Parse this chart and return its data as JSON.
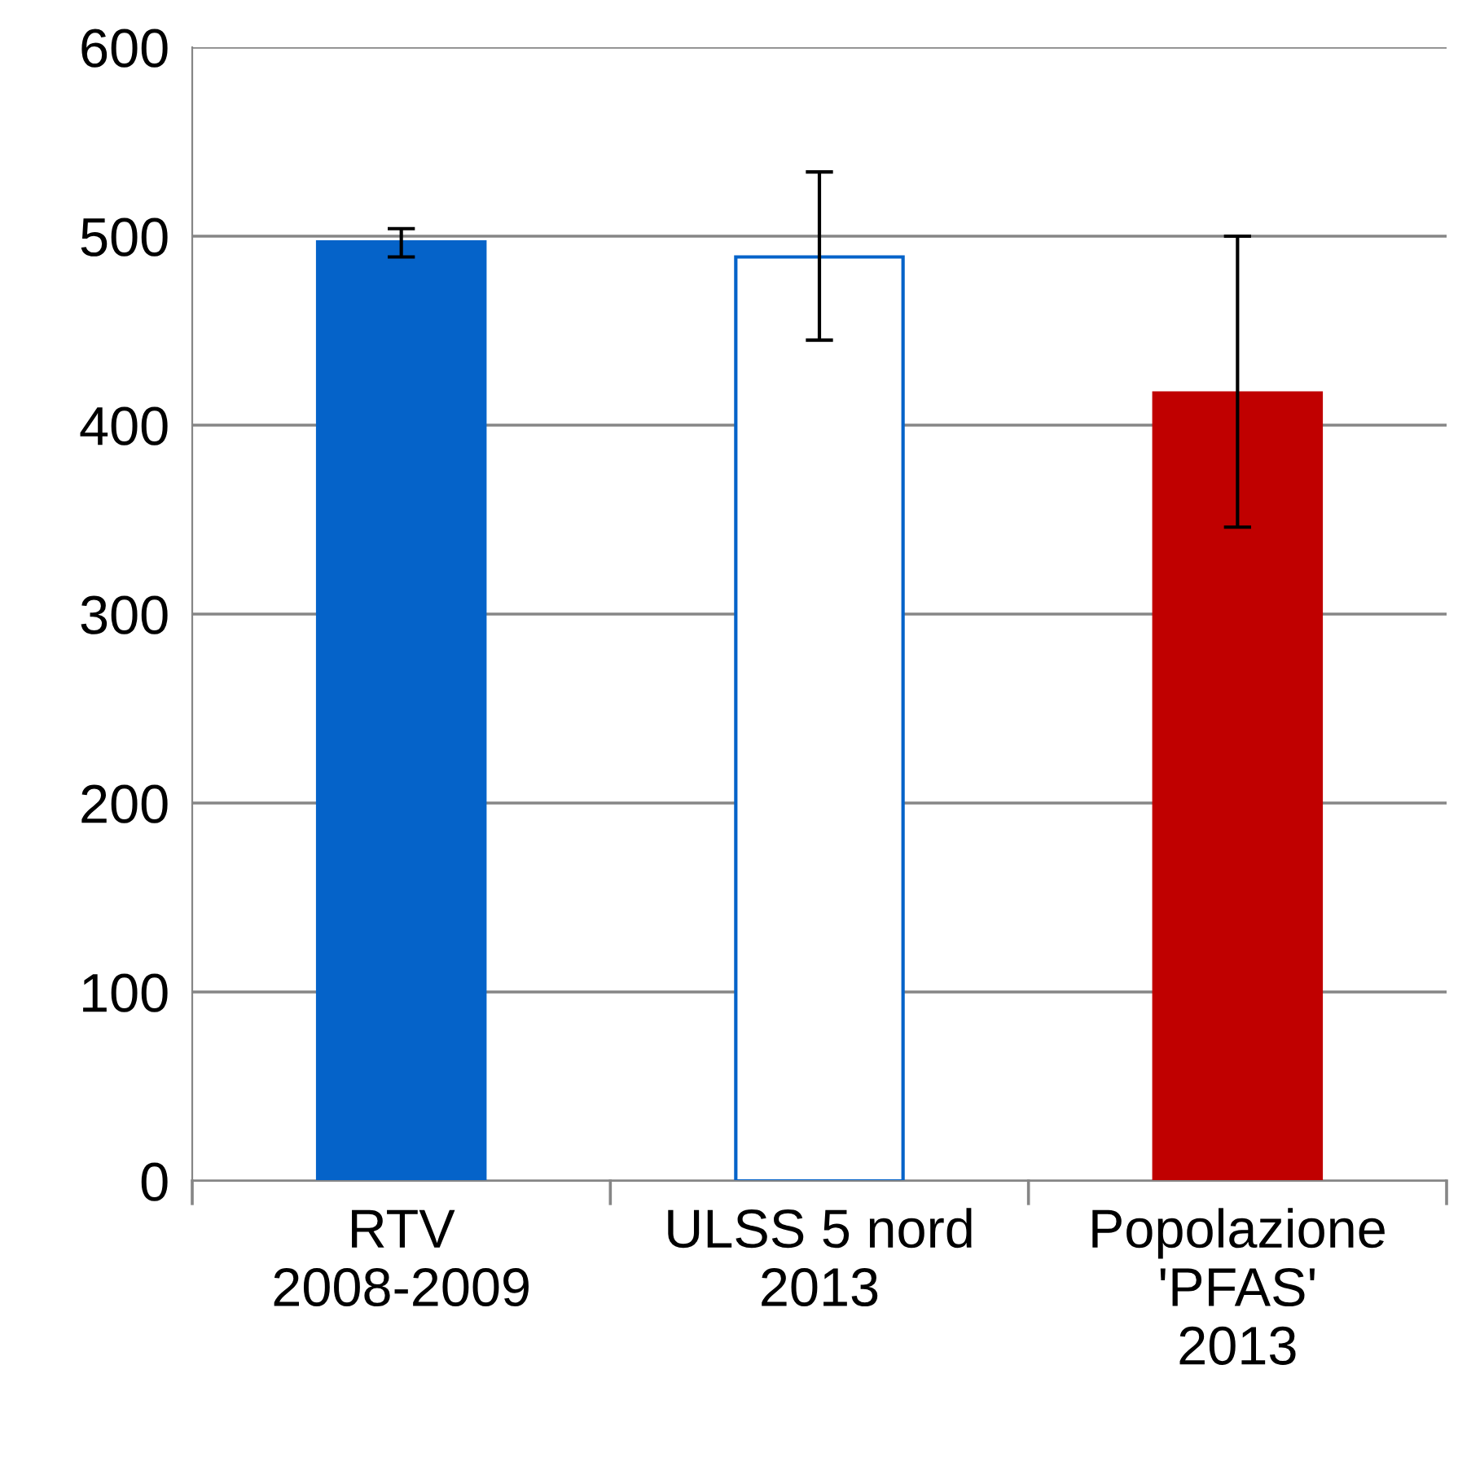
{
  "chart_data": {
    "type": "bar",
    "categories": [
      "RTV\n2008-2009",
      "ULSS 5 nord\n2013",
      "Popolazione\n'PFAS'\n2013"
    ],
    "values": [
      497,
      489,
      417
    ],
    "colors": [
      "#0563c9",
      "#ffffff",
      "#c00000"
    ],
    "errors": [
      [
        489,
        504
      ],
      [
        445,
        534
      ],
      [
        346,
        500
      ]
    ],
    "ylim": [
      0,
      600
    ],
    "yticks": [
      0,
      100,
      200,
      300,
      400,
      500,
      600
    ],
    "grid": "y"
  }
}
